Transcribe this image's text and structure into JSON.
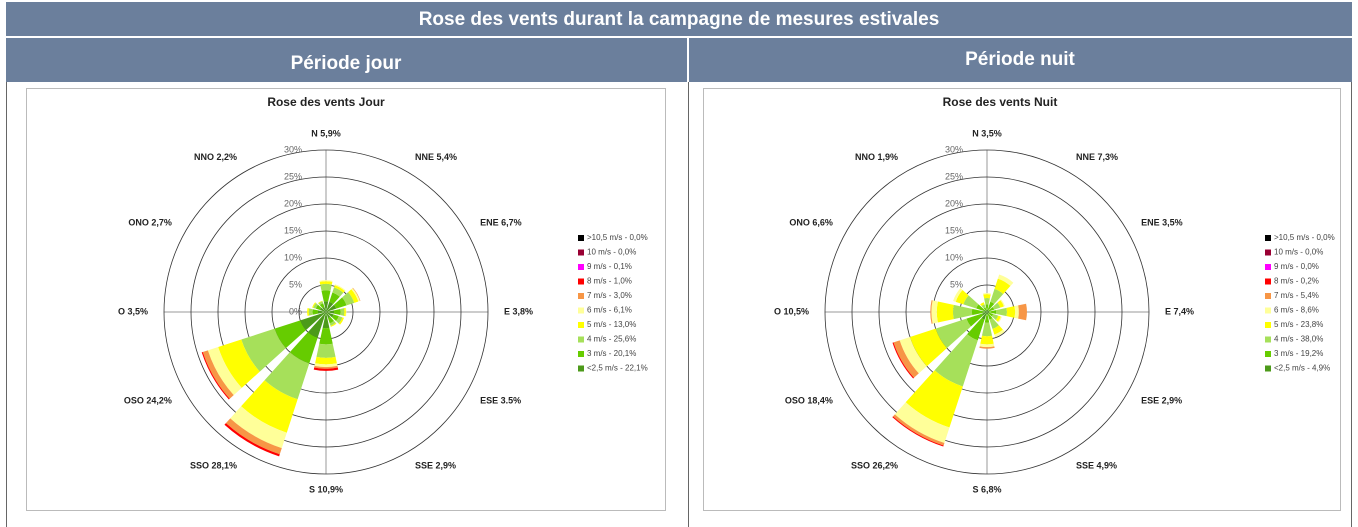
{
  "title": "Rose des vents durant la campagne de mesures estivales",
  "panels": [
    {
      "heading": "Période jour",
      "chart": {
        "type": "windrose",
        "title": "Rose des vents Jour",
        "categories": [
          "N 5,9%",
          "NNE 5,4%",
          "ENE 6,7%",
          "E 3,8%",
          "ESE 3.5%",
          "SSE 2,9%",
          "S 10,9%",
          "SSO 28,1%",
          "OSO 24,2%",
          "O 3,5%",
          "ONO 2,7%",
          "NNO 2,2%"
        ],
        "rlim": [
          0,
          30
        ],
        "rticks": [
          {
            "value": 0,
            "label": "0%"
          },
          {
            "value": 5,
            "label": "5%"
          },
          {
            "value": 10,
            "label": "10%"
          },
          {
            "value": 15,
            "label": "15%"
          },
          {
            "value": 20,
            "label": "20%"
          },
          {
            "value": 25,
            "label": "25%"
          },
          {
            "value": 30,
            "label": "30%"
          }
        ],
        "grid": true,
        "series": [
          {
            "name": ">10,5 m/s - 0,0%",
            "color": "#000000",
            "values": [
              0,
              0,
              0,
              0,
              0,
              0,
              0,
              0,
              0,
              0,
              0,
              0
            ]
          },
          {
            "name": "10 m/s - 0,0%",
            "color": "#990033",
            "values": [
              0,
              0,
              0,
              0,
              0,
              0,
              0,
              0,
              0,
              0,
              0,
              0
            ]
          },
          {
            "name": "9 m/s - 0,1%",
            "color": "#ff00ff",
            "values": [
              0,
              0,
              0,
              0,
              0,
              0,
              0,
              0,
              0,
              0,
              0,
              0
            ]
          },
          {
            "name": "8 m/s - 1,0%",
            "color": "#ff0000",
            "values": [
              0,
              0,
              0,
              0,
              0,
              0,
              0.4,
              0.4,
              0.2,
              0,
              0,
              0
            ]
          },
          {
            "name": "7 m/s - 3,0%",
            "color": "#f79646",
            "values": [
              0,
              0,
              0.1,
              0,
              0,
              0,
              0.3,
              1.2,
              1,
              0,
              0,
              0
            ]
          },
          {
            "name": "6 m/s - 6,1%",
            "color": "#ffff99",
            "values": [
              0.2,
              0.2,
              0.3,
              0.1,
              0,
              0,
              0.5,
              3,
              2,
              0,
              0,
              0
            ]
          },
          {
            "name": "5 m/s - 13,0%",
            "color": "#ffff00",
            "values": [
              0.5,
              0.4,
              0.8,
              0.3,
              0.3,
              0.2,
              1.2,
              6.5,
              4.5,
              0.3,
              0.2,
              0.1
            ]
          },
          {
            "name": "4 m/s - 25,6%",
            "color": "#a6e05a",
            "values": [
              1.2,
              1,
              1.5,
              0.7,
              0.7,
              0.5,
              2.5,
              7,
              6.5,
              0.7,
              0.5,
              0.4
            ]
          },
          {
            "name": "3 m/s - 20,1%",
            "color": "#66cc00",
            "values": [
              2,
              1.8,
              2,
              1.2,
              1,
              1,
              3,
              5,
              5,
              1,
              0.8,
              0.7
            ]
          },
          {
            "name": "<2,5 m/s - 22,1%",
            "color": "#4c9a1a",
            "values": [
              2,
              2,
              2,
              1.5,
              1.5,
              1.2,
              3,
              5,
              5,
              1.5,
              1.2,
              1
            ]
          }
        ]
      }
    },
    {
      "heading": "Période nuit",
      "chart": {
        "type": "windrose",
        "title": "Rose des vents Nuit",
        "categories": [
          "N 3,5%",
          "NNE 7,3%",
          "ENE 3,5%",
          "E 7,4%",
          "ESE 2,9%",
          "SSE 4,9%",
          "S 6,8%",
          "SSO 26,2%",
          "OSO 18,4%",
          "O 10,5%",
          "ONO 6,6%",
          "NNO 1,9%"
        ],
        "rlim": [
          0,
          30
        ],
        "rticks": [
          {
            "value": 0,
            "label": "0%"
          },
          {
            "value": 5,
            "label": "5%"
          },
          {
            "value": 10,
            "label": "10%"
          },
          {
            "value": 15,
            "label": "15%"
          },
          {
            "value": 20,
            "label": "20%"
          },
          {
            "value": 25,
            "label": "25%"
          },
          {
            "value": 30,
            "label": "30%"
          }
        ],
        "grid": true,
        "series": [
          {
            "name": ">10,5 m/s - 0,0%",
            "color": "#000000",
            "values": [
              0,
              0,
              0,
              0,
              0,
              0,
              0,
              0,
              0,
              0,
              0,
              0
            ]
          },
          {
            "name": "10 m/s - 0,0%",
            "color": "#990033",
            "values": [
              0,
              0,
              0,
              0,
              0,
              0,
              0,
              0,
              0,
              0,
              0,
              0
            ]
          },
          {
            "name": "9 m/s - 0,0%",
            "color": "#ff00ff",
            "values": [
              0,
              0,
              0,
              0,
              0,
              0,
              0,
              0,
              0,
              0,
              0,
              0
            ]
          },
          {
            "name": "8 m/s - 0,2%",
            "color": "#ff0000",
            "values": [
              0,
              0,
              0,
              0,
              0,
              0,
              0,
              0.2,
              0.2,
              0,
              0,
              0
            ]
          },
          {
            "name": "7 m/s - 5,4%",
            "color": "#f79646",
            "values": [
              0,
              0,
              0,
              1.5,
              0,
              0,
              0.3,
              0.5,
              1.2,
              0.2,
              0,
              0
            ]
          },
          {
            "name": "6 m/s - 8,6%",
            "color": "#ffff99",
            "values": [
              0.2,
              0.8,
              0.2,
              0.7,
              0.2,
              0.5,
              0.5,
              3,
              2,
              1,
              0.5,
              0
            ]
          },
          {
            "name": "5 m/s - 23,8%",
            "color": "#ffff00",
            "values": [
              0.7,
              2,
              0.7,
              1.5,
              0.5,
              1.1,
              1.5,
              8,
              5,
              3,
              1.5,
              0.4
            ]
          },
          {
            "name": "4 m/s - 38,0%",
            "color": "#a6e05a",
            "values": [
              1.2,
              2.5,
              1.2,
              2,
              1,
              1.8,
              2.5,
              9,
              6,
              3.5,
              2.5,
              0.6
            ]
          },
          {
            "name": "3 m/s - 19,2%",
            "color": "#66cc00",
            "values": [
              1,
              1.5,
              1,
              1.2,
              0.8,
              1,
              1.5,
              4,
              3,
              2,
              1.5,
              0.6
            ]
          },
          {
            "name": "<2,5 m/s - 4,9%",
            "color": "#4c9a1a",
            "values": [
              0.4,
              0.5,
              0.4,
              0.5,
              0.4,
              0.5,
              0.5,
              1.5,
              1,
              0.8,
              0.6,
              0.3
            ]
          }
        ]
      }
    }
  ]
}
